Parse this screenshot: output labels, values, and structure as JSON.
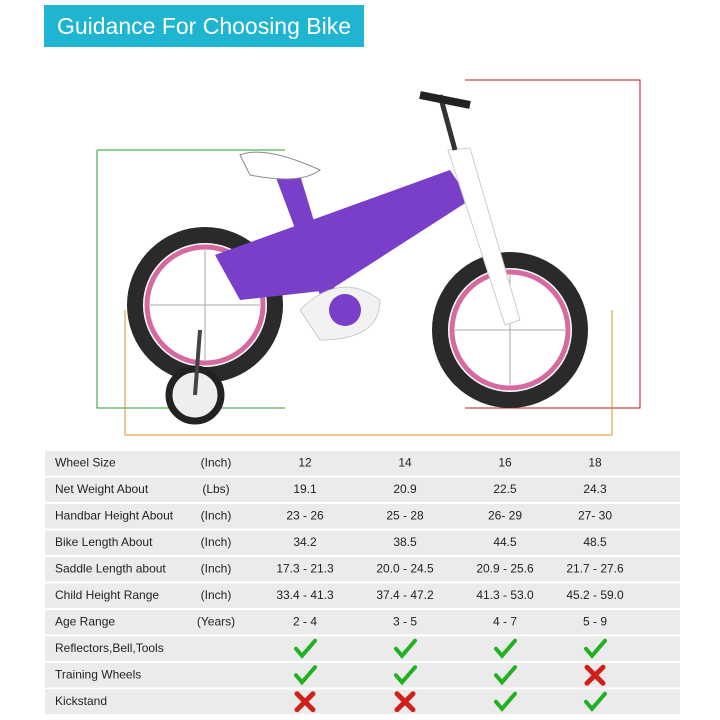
{
  "header": {
    "title": "Guidance For Choosing Bike"
  },
  "table": {
    "rows": [
      {
        "label": "Wheel Size",
        "unit": "(Inch)",
        "values": [
          "12",
          "14",
          "16",
          "18"
        ]
      },
      {
        "label": "Net Weight About",
        "unit": "(Lbs)",
        "values": [
          "19.1",
          "20.9",
          "22.5",
          "24.3"
        ]
      },
      {
        "label": "Handbar Height About",
        "unit": "(Inch)",
        "values": [
          "23 - 26",
          "25 - 28",
          "26- 29",
          "27- 30"
        ],
        "color": "#c0161c"
      },
      {
        "label": "Bike Length About",
        "unit": "(Inch)",
        "values": [
          "34.2",
          "38.5",
          "44.5",
          "48.5"
        ],
        "color": "#e0722e"
      },
      {
        "label": "Saddle Length about",
        "unit": "(Inch)",
        "values": [
          "17.3 - 21.3",
          "20.0 - 24.5",
          "20.9 - 25.6",
          "21.7 - 27.6"
        ],
        "color": "#2e9a2e"
      },
      {
        "label": "Child Height Range",
        "unit": "(Inch)",
        "values": [
          "33.4 - 41.3",
          "37.4 - 47.2",
          "41.3 - 53.0",
          "45.2 - 59.0"
        ]
      },
      {
        "label": "Age Range",
        "unit": "(Years)",
        "values": [
          "2 - 4",
          "3 - 5",
          "4 - 7",
          "5 - 9"
        ]
      }
    ],
    "features": [
      {
        "label": "Reflectors,Bell,Tools",
        "values": [
          true,
          true,
          true,
          true
        ]
      },
      {
        "label": "Training Wheels",
        "values": [
          true,
          true,
          true,
          false
        ]
      },
      {
        "label": "Kickstand",
        "values": [
          false,
          false,
          true,
          true
        ]
      }
    ]
  }
}
